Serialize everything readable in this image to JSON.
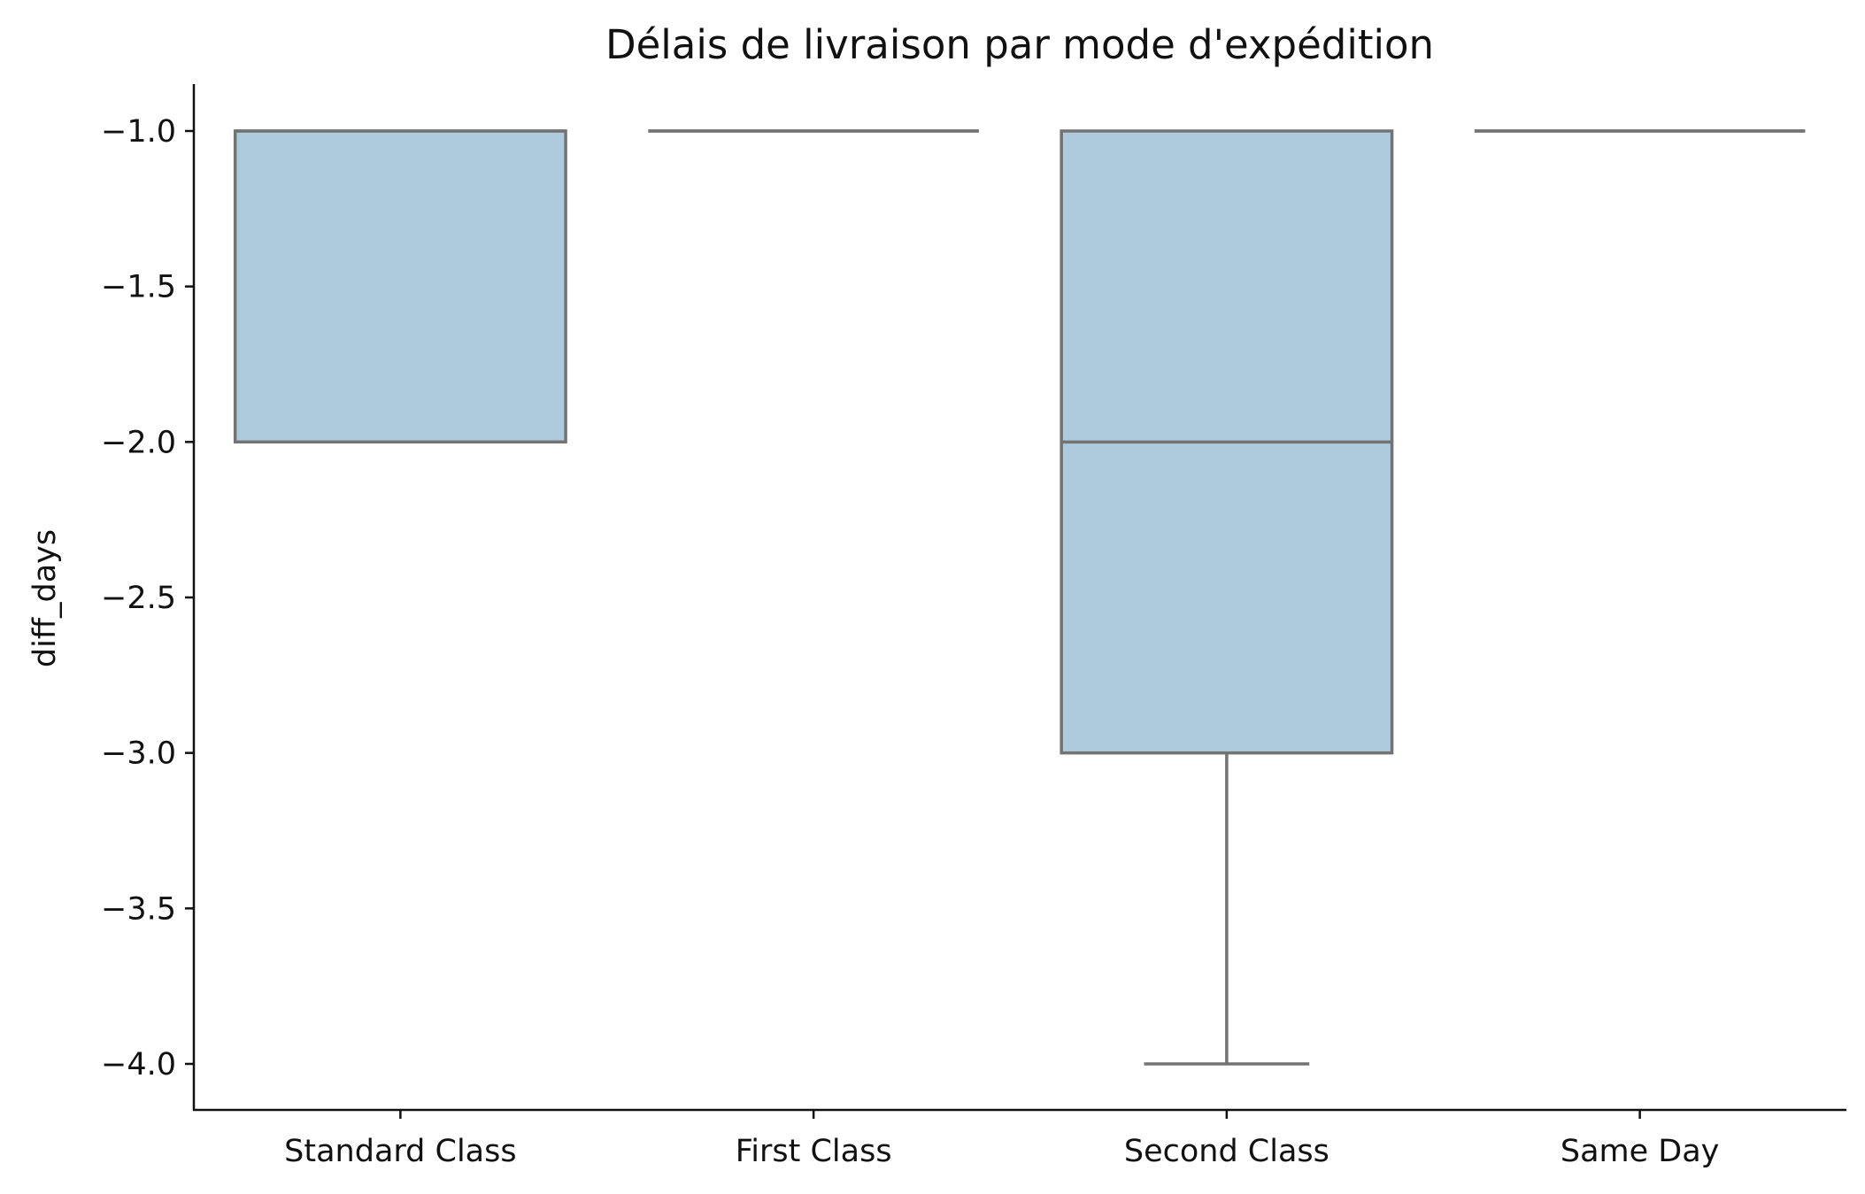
{
  "chart_data": {
    "type": "box",
    "title": "Délais de livraison par mode d'expédition",
    "xlabel": "",
    "ylabel": "diff_days",
    "categories": [
      "Standard Class",
      "First Class",
      "Second Class",
      "Same Day"
    ],
    "y_ticks": [
      -1.0,
      -1.5,
      -2.0,
      -2.5,
      -3.0,
      -3.5,
      -4.0
    ],
    "y_tick_labels": [
      "−1.0",
      "−1.5",
      "−2.0",
      "−2.5",
      "−3.0",
      "−3.5",
      "−4.0"
    ],
    "ylim": [
      -4.15,
      -0.85
    ],
    "boxes": [
      {
        "category": "Standard Class",
        "whisker_low": -2,
        "q1": -2,
        "median": -1,
        "q3": -1,
        "whisker_high": -1
      },
      {
        "category": "First Class",
        "whisker_low": -1,
        "q1": -1,
        "median": -1,
        "q3": -1,
        "whisker_high": -1
      },
      {
        "category": "Second Class",
        "whisker_low": -4,
        "q1": -3,
        "median": -2,
        "q3": -1,
        "whisker_high": -1
      },
      {
        "category": "Same Day",
        "whisker_low": -1,
        "q1": -1,
        "median": -1,
        "q3": -1,
        "whisker_high": -1
      }
    ],
    "colors": {
      "box_fill": "#aecbdd",
      "box_edge": "#737373",
      "axis": "#111111"
    },
    "grid": false,
    "legend": "none"
  }
}
